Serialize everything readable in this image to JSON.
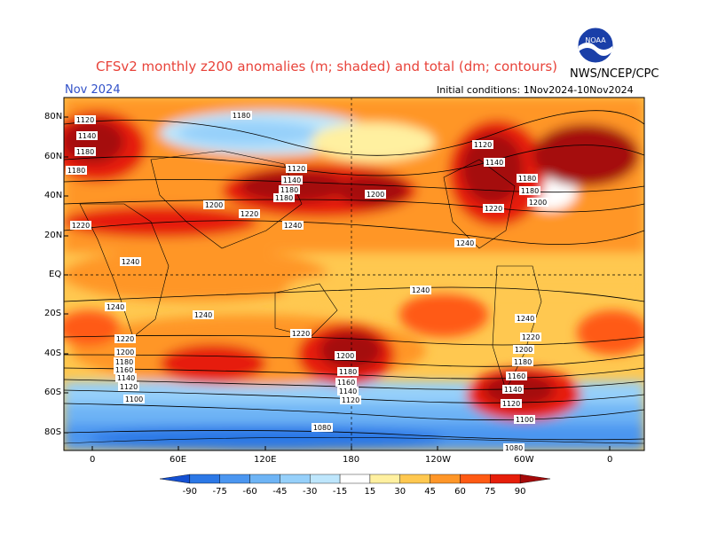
{
  "header": {
    "title": "CFSv2 monthly z200 anomalies (m; shaded) and total (dm; contours)",
    "month": "Nov 2024",
    "initial_conditions": "Initial conditions: 1Nov2024-10Nov2024",
    "agency": "NWS/NCEP/CPC",
    "logo_text": "NOAA"
  },
  "axes": {
    "lat_labels": [
      "80N",
      "60N",
      "40N",
      "20N",
      "EQ",
      "20S",
      "40S",
      "60S",
      "80S"
    ],
    "lon_labels": [
      "0",
      "60E",
      "120E",
      "180",
      "120W",
      "60W",
      "0"
    ]
  },
  "colorbar": {
    "levels": [
      "-90",
      "-75",
      "-60",
      "-45",
      "-30",
      "-15",
      "15",
      "30",
      "45",
      "60",
      "75",
      "90"
    ],
    "colors": [
      "#1450d2",
      "#2c78e6",
      "#4b96f0",
      "#6eb4f5",
      "#96d0fa",
      "#bee6fc",
      "#ffffff",
      "#fff0a0",
      "#ffc850",
      "#ff9628",
      "#ff5a14",
      "#e61e0a",
      "#a50a0a"
    ]
  },
  "contour_labels": [
    "1120",
    "1140",
    "1160",
    "1180",
    "1200",
    "1220",
    "1240",
    "1100",
    "1080"
  ],
  "colors": {
    "title": "#e8433a",
    "month": "#3050c8",
    "map_background": "#ffc850"
  }
}
